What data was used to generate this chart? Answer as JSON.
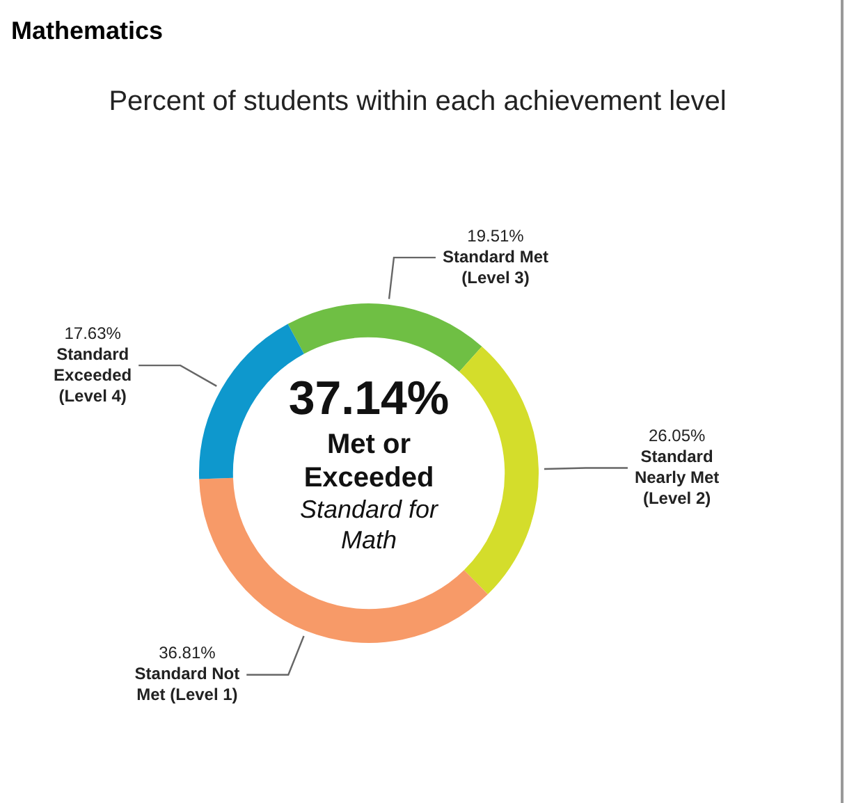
{
  "chart_data": {
    "type": "donut",
    "title": "Mathematics",
    "subtitle": "Percent of students within each achievement level",
    "categories": [
      "Standard Met (Level 3)",
      "Standard Nearly Met (Level 2)",
      "Standard Not Met (Level 1)",
      "Standard Exceeded (Level 4)"
    ],
    "values": [
      19.51,
      26.05,
      36.81,
      17.63
    ],
    "colors": [
      "#6fbf44",
      "#d4dd2b",
      "#f79a68",
      "#0e98cd"
    ],
    "value_labels": [
      "19.51%",
      "26.05%",
      "36.81%",
      "17.63%"
    ],
    "annotations": [
      "37.14%",
      "Met or Exceeded",
      "Standard for Math"
    ],
    "legend": false
  }
}
